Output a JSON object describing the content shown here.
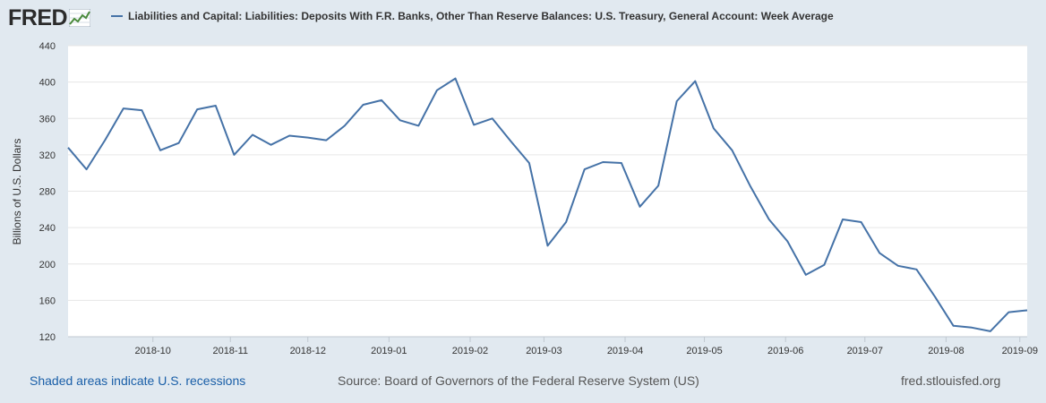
{
  "header": {
    "logo_text": "FRED",
    "logo_icon": "line-chart-icon",
    "legend_label": "Liabilities and Capital: Liabilities: Deposits With F.R. Banks, Other Than Reserve Balances: U.S. Treasury, General Account: Week Average"
  },
  "chart_data": {
    "type": "line",
    "title": "Liabilities and Capital: Liabilities: Deposits With F.R. Banks, Other Than Reserve Balances: U.S. Treasury, General Account: Week Average",
    "xlabel": "",
    "ylabel": "Billions of U.S. Dollars",
    "ylim": [
      120,
      440
    ],
    "yticks": [
      120,
      160,
      200,
      240,
      280,
      320,
      360,
      400,
      440
    ],
    "xticks": [
      "2018-10",
      "2018-11",
      "2018-12",
      "2019-01",
      "2019-02",
      "2019-03",
      "2019-04",
      "2019-05",
      "2019-06",
      "2019-07",
      "2019-08",
      "2019-09"
    ],
    "xtick_index": [
      4.6,
      8.8,
      13.0,
      17.4,
      21.8,
      25.8,
      30.2,
      34.5,
      38.9,
      43.2,
      47.6,
      51.6
    ],
    "grid": true,
    "line_color": "#4572a7",
    "series": [
      {
        "name": "Liabilities and Capital: Liabilities: Deposits With F.R. Banks, Other Than Reserve Balances: U.S. Treasury, General Account: Week Average",
        "values": [
          328,
          304,
          336,
          371,
          369,
          325,
          333,
          370,
          374,
          320,
          342,
          331,
          341,
          339,
          336,
          352,
          375,
          380,
          358,
          352,
          391,
          404,
          353,
          360,
          335,
          311,
          220,
          246,
          304,
          312,
          311,
          263,
          286,
          379,
          401,
          349,
          325,
          285,
          249,
          225,
          188,
          199,
          249,
          246,
          212,
          198,
          194,
          164,
          132,
          130,
          126,
          147,
          149
        ]
      }
    ]
  },
  "footer": {
    "recession_note": "Shaded areas indicate U.S. recessions",
    "source": "Source: Board of Governors of the Federal Reserve System (US)",
    "url": "fred.stlouisfed.org"
  }
}
